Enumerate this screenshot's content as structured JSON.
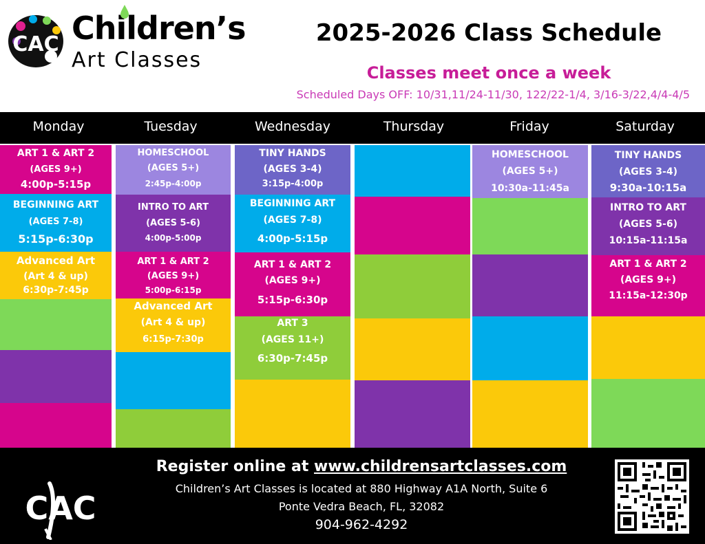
{
  "header": {
    "brand_name": "Children’s",
    "brand_sub": "Art Classes",
    "title": "2025-2026 Class Schedule",
    "subtitle": "Classes meet once a week",
    "days_off": "Scheduled Days OFF: 10/31,11/24-11/30, 122/22-1/4, 3/16-3/22,4/4-4/5"
  },
  "colors": {
    "magenta": "#d6058c",
    "blue": "#00acea",
    "yellow": "#fbc90a",
    "green": "#7ed958",
    "dark_green": "#8fcd3a",
    "purple": "#7f33aa",
    "lavender": "#9c86e0",
    "slate": "#6d65c7",
    "title_pink": "#c71d98",
    "days_off_pink": "#c93ab6"
  },
  "days": [
    "Monday",
    "Tuesday",
    "Wednesday",
    "Thursday",
    "Friday",
    "Saturday"
  ],
  "classes": {
    "monday": [
      {
        "name": "ART 1 & ART 2",
        "ages": "(AGES 9+)",
        "time": "4:00p-5:15p"
      },
      {
        "name": "BEGINNING ART",
        "ages": "(AGES 7-8)",
        "time": "5:15p-6:30p"
      },
      {
        "name": "Advanced Art",
        "ages": "(Art 4 & up)",
        "time": "6:30p-7:45p"
      }
    ],
    "tuesday": [
      {
        "name": "HOMESCHOOL",
        "ages": "(AGES 5+)",
        "time": "2:45p-4:00p"
      },
      {
        "name": "INTRO TO ART",
        "ages": "(AGES 5-6)",
        "time": "4:00p-5:00p"
      },
      {
        "name": "ART 1 & ART 2",
        "ages": "(AGES 9+)",
        "time": "5:00p-6:15p"
      },
      {
        "name": "Advanced Art",
        "ages": "(Art 4 & up)",
        "time": "6:15p-7:30p"
      }
    ],
    "wednesday": [
      {
        "name": "TINY HANDS",
        "ages": "(AGES 3-4)",
        "time": "3:15p-4:00p"
      },
      {
        "name": "BEGINNING ART",
        "ages": "(AGES 7-8)",
        "time": "4:00p-5:15p"
      },
      {
        "name": "ART 1 & ART 2",
        "ages": "(AGES 9+)",
        "time": "5:15p-6:30p"
      },
      {
        "name": "ART 3",
        "ages": "(AGES 11+)",
        "time": "6:30p-7:45p"
      }
    ],
    "thursday": [],
    "friday": [
      {
        "name": "HOMESCHOOL",
        "ages": "(AGES 5+)",
        "time": "10:30a-11:45a"
      }
    ],
    "saturday": [
      {
        "name": "TINY HANDS",
        "ages": "(AGES 3-4)",
        "time": "9:30a-10:15a"
      },
      {
        "name": "INTRO TO ART",
        "ages": "(AGES 5-6)",
        "time": "10:15a-11:15a"
      },
      {
        "name": "ART 1 & ART 2",
        "ages": "(AGES 9+)",
        "time": "11:15a-12:30p"
      }
    ]
  },
  "footer": {
    "register_prefix": "Register online at ",
    "register_url": "www.childrensartclasses.com",
    "address_line1": "Children’s Art Classes is located at 880 Highway A1A North, Suite 6",
    "address_line2": "Ponte Vedra Beach, FL, 32082",
    "phone": "904-962-4292"
  },
  "icons": {
    "header_logo": "palette-cac-logo-icon",
    "footer_logo": "cac-brush-logo-icon",
    "qr": "qr-code-icon"
  }
}
